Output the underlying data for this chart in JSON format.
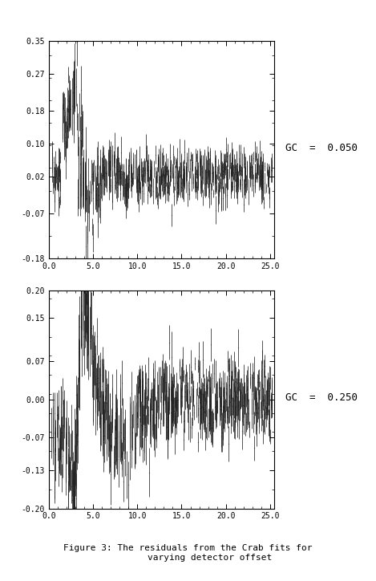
{
  "title": "Figure 3: The residuals from the Crab fits for\n        varying detector offset",
  "subplot1": {
    "label": "GC  =  0.050",
    "ylim": [
      -0.18,
      0.35
    ],
    "yticks": [
      -0.18,
      -0.07,
      0.02,
      0.1,
      0.18,
      0.27,
      0.35
    ],
    "ytick_labels": [
      "-0.18",
      "-0.07",
      "0.02",
      "0.10",
      "0.18",
      "0.27",
      "0.35"
    ],
    "xlim": [
      0.0,
      25.5
    ],
    "xticks": [
      0.0,
      5.0,
      10.0,
      15.0,
      20.0,
      25.0
    ],
    "xtick_labels": [
      "0.0",
      "5.0",
      "10.0",
      "15.0",
      "20.0",
      "25.0"
    ],
    "seed": 17
  },
  "subplot2": {
    "label": "GC  =  0.250",
    "ylim": [
      -0.2,
      0.2
    ],
    "yticks": [
      -0.2,
      -0.13,
      -0.07,
      0.0,
      0.07,
      0.15,
      0.2
    ],
    "ytick_labels": [
      "-0.20",
      "-0.13",
      "-0.07",
      "0.00",
      "0.07",
      "0.15",
      "0.20"
    ],
    "xlim": [
      0.0,
      25.5
    ],
    "xticks": [
      0.0,
      5.0,
      10.0,
      15.0,
      20.0,
      25.0
    ],
    "xtick_labels": [
      "0.0",
      "5.0",
      "10.0",
      "15.0",
      "20.0",
      "25.0"
    ],
    "seed": 99
  },
  "plot_color": "#222222",
  "fig_width": 4.69,
  "fig_height": 7.24,
  "dpi": 100
}
